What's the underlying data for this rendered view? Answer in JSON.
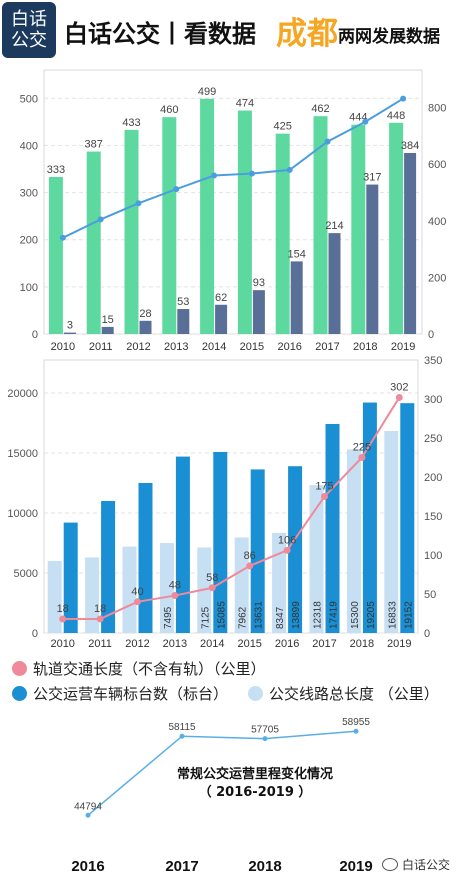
{
  "header": {
    "logo_line1": "白话",
    "logo_line2": "公交",
    "title": "白话公交丨看数据",
    "city": "成都",
    "subtitle": "两网发展数据"
  },
  "colors": {
    "green": "#5dd89e",
    "navy": "#5a6f97",
    "blue_line": "#4a9ee0",
    "blue_bar": "#1a8fd4",
    "light_bar": "#c7dff2",
    "pink": "#ef8a9a",
    "c3_line": "#5aaee6"
  },
  "chart_data": [
    {
      "type": "bar",
      "categories": [
        "2010",
        "2011",
        "2012",
        "2013",
        "2014",
        "2015",
        "2016",
        "2017",
        "2018",
        "2019"
      ],
      "series": [
        {
          "values": [
            333,
            387,
            433,
            460,
            499,
            474,
            425,
            462,
            444,
            448
          ],
          "color": "#5dd89e",
          "axis": "left",
          "labeled": true
        },
        {
          "values": [
            3,
            15,
            28,
            53,
            62,
            93,
            154,
            214,
            317,
            384
          ],
          "color": "#5a6f97",
          "axis": "left",
          "labeled": true
        },
        {
          "type": "line",
          "values": [
            340,
            405,
            462,
            512,
            560,
            567,
            580,
            680,
            750,
            832
          ],
          "color": "#4a9ee0",
          "axis": "right",
          "labeled": false
        }
      ],
      "yticks_left": [
        "0",
        "100",
        "200",
        "300",
        "400",
        "500"
      ],
      "yticks_right": [
        "0",
        "200",
        "400",
        "600",
        "800"
      ],
      "ylim_left": [
        0,
        560
      ],
      "ylim_right": [
        0,
        933
      ],
      "grid": true
    },
    {
      "type": "bar",
      "categories": [
        "2010",
        "2011",
        "2012",
        "2013",
        "2014",
        "2015",
        "2016",
        "2017",
        "2018",
        "2019"
      ],
      "series": [
        {
          "name": "公交线路总长度 （公里）",
          "values": [
            6000,
            6300,
            7200,
            7495,
            7125,
            7962,
            8347,
            12318,
            15300,
            16833
          ],
          "value_labels": [
            "",
            "",
            "",
            "7495",
            "7125",
            "7962",
            "8347",
            "12318",
            "15300",
            "16833"
          ],
          "color": "#c7dff2",
          "axis": "left"
        },
        {
          "name": "公交运营车辆标台数（标台）",
          "values": [
            9200,
            11000,
            12500,
            14700,
            15085,
            13631,
            13899,
            17419,
            19205,
            19152
          ],
          "value_labels": [
            "",
            "",
            "",
            "",
            "15085",
            "13631",
            "13899",
            "17419",
            "19205",
            "19152"
          ],
          "color": "#1a8fd4",
          "axis": "left"
        },
        {
          "name": "轨道交通长度（不含有轨）（公里）",
          "type": "line",
          "values": [
            18,
            18,
            40,
            48,
            58,
            86,
            106,
            175,
            225,
            302
          ],
          "value_labels": [
            "18",
            "18",
            "40",
            "48",
            "58",
            "86",
            "106",
            "175",
            "225",
            "302"
          ],
          "color": "#ef8a9a",
          "axis": "right"
        }
      ],
      "yticks_left": [
        "0",
        "5000",
        "10000",
        "15000",
        "20000"
      ],
      "yticks_right": [
        "0",
        "50",
        "100",
        "150",
        "200",
        "250",
        "300",
        "350"
      ],
      "ylim_left": [
        0,
        22750
      ],
      "ylim_right": [
        0,
        350
      ],
      "legend": "bottom",
      "grid": true
    },
    {
      "type": "line",
      "title_line1": "常规公交运营里程变化情况",
      "title_line2": "（ 2016-2019 ）",
      "categories": [
        "2016",
        "2017",
        "2018",
        "2019"
      ],
      "values": [
        44794,
        58115,
        57705,
        58955
      ],
      "value_labels": [
        "44794",
        "58115",
        "57705",
        "58955"
      ],
      "color": "#5aaee6"
    }
  ],
  "watermark": "白话公交"
}
